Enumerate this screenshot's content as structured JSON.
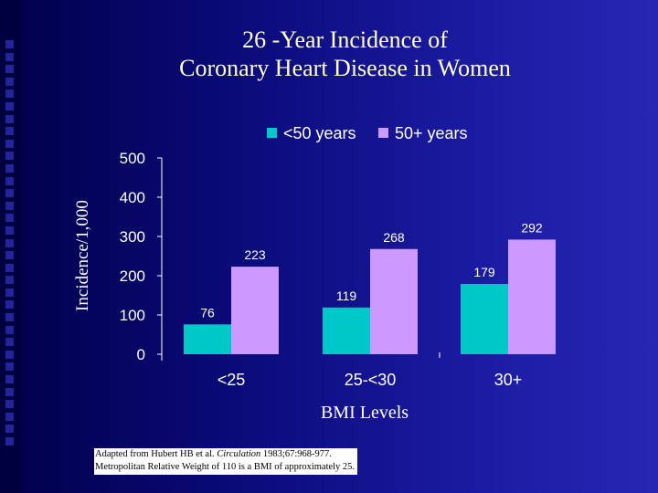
{
  "slide": {
    "title_line1": "26 -Year Incidence of",
    "title_line2": "Coronary Heart Disease in Women",
    "source_line1_pre": "Adapted from Hubert HB et al.",
    "source_journal": "Circulation",
    "source_line1_post": "1983;67:968-977.",
    "source_line2": "Metropolitan Relative Weight of 110 is a BMI of approximately 25."
  },
  "colors": {
    "series1": "#00c8c8",
    "series2": "#cc99ff",
    "title": "#ffffcc",
    "axis_text": "#ffffff"
  },
  "chart_data": {
    "type": "bar",
    "title": "26 -Year Incidence of Coronary Heart Disease in Women",
    "xlabel": "BMI Levels",
    "ylabel": "Incidence/1,000",
    "categories": [
      "<25",
      "25-<30",
      "30+"
    ],
    "series": [
      {
        "name": "<50 years",
        "values": [
          76,
          119,
          179
        ]
      },
      {
        "name": "50+ years",
        "values": [
          223,
          268,
          292
        ]
      }
    ],
    "ylim": [
      0,
      500
    ],
    "yticks": [
      0,
      100,
      200,
      300,
      400,
      500
    ],
    "grid": false,
    "legend": "top-right",
    "data_labels": true
  }
}
